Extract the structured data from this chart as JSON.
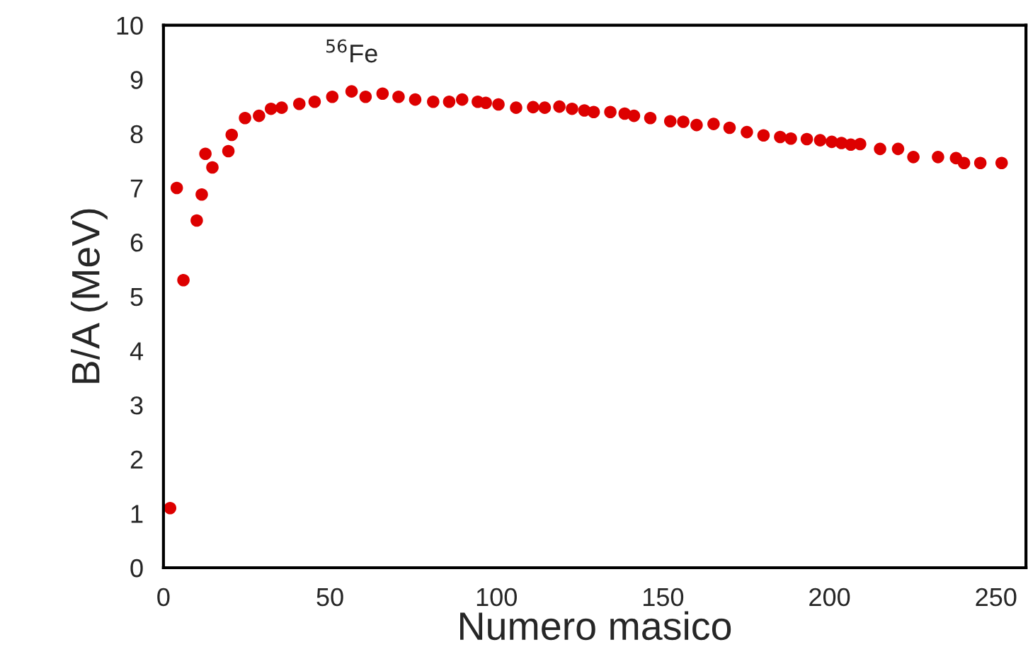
{
  "chart_data": {
    "type": "scatter",
    "xlabel": "Numero masico",
    "ylabel": "B/A (MeV)",
    "x": [
      2,
      4,
      6,
      10,
      11.5,
      12.6,
      14.7,
      19.5,
      20.5,
      24.5,
      28.7,
      32.3,
      35.5,
      40.8,
      45.4,
      50.7,
      56.5,
      60.7,
      65.8,
      70.6,
      75.6,
      81,
      85.8,
      89.7,
      94.4,
      96.8,
      100.6,
      105.9,
      111,
      114.5,
      118.9,
      122.7,
      126.4,
      129.2,
      134.2,
      138.5,
      141.3,
      146.2,
      152.2,
      156.1,
      160.1,
      165.2,
      170,
      175.2,
      180.2,
      185.2,
      188.4,
      193.2,
      197.2,
      200.7,
      203.6,
      206.4,
      209.2,
      215.2,
      220.6,
      225.2,
      232.6,
      238,
      240.4,
      245.3,
      251.7
    ],
    "series": [
      {
        "color": "#dd0000",
        "values": [
          1.1,
          7.0,
          5.3,
          6.4,
          6.88,
          7.63,
          7.38,
          7.68,
          7.98,
          8.29,
          8.33,
          8.46,
          8.48,
          8.55,
          8.59,
          8.68,
          8.78,
          8.68,
          8.74,
          8.68,
          8.63,
          8.59,
          8.59,
          8.63,
          8.59,
          8.57,
          8.54,
          8.48,
          8.49,
          8.48,
          8.5,
          8.46,
          8.43,
          8.4,
          8.4,
          8.37,
          8.33,
          8.29,
          8.23,
          8.22,
          8.16,
          8.18,
          8.11,
          8.03,
          7.97,
          7.94,
          7.91,
          7.9,
          7.88,
          7.85,
          7.83,
          7.8,
          7.81,
          7.72,
          7.72,
          7.57,
          7.57,
          7.55,
          7.46,
          7.46,
          7.46
        ]
      }
    ],
    "xlim": [
      0,
      259
    ],
    "ylim": [
      0,
      10
    ],
    "xticks": [
      0,
      50,
      100,
      150,
      200,
      250
    ],
    "yticks": [
      0,
      1,
      2,
      3,
      4,
      5,
      6,
      7,
      8,
      9,
      10
    ],
    "marker": "circle",
    "grid": false,
    "legend": false,
    "annotations": [
      {
        "text": "$^{56}$Fe",
        "x": 56.5,
        "y": 8.78
      }
    ]
  }
}
